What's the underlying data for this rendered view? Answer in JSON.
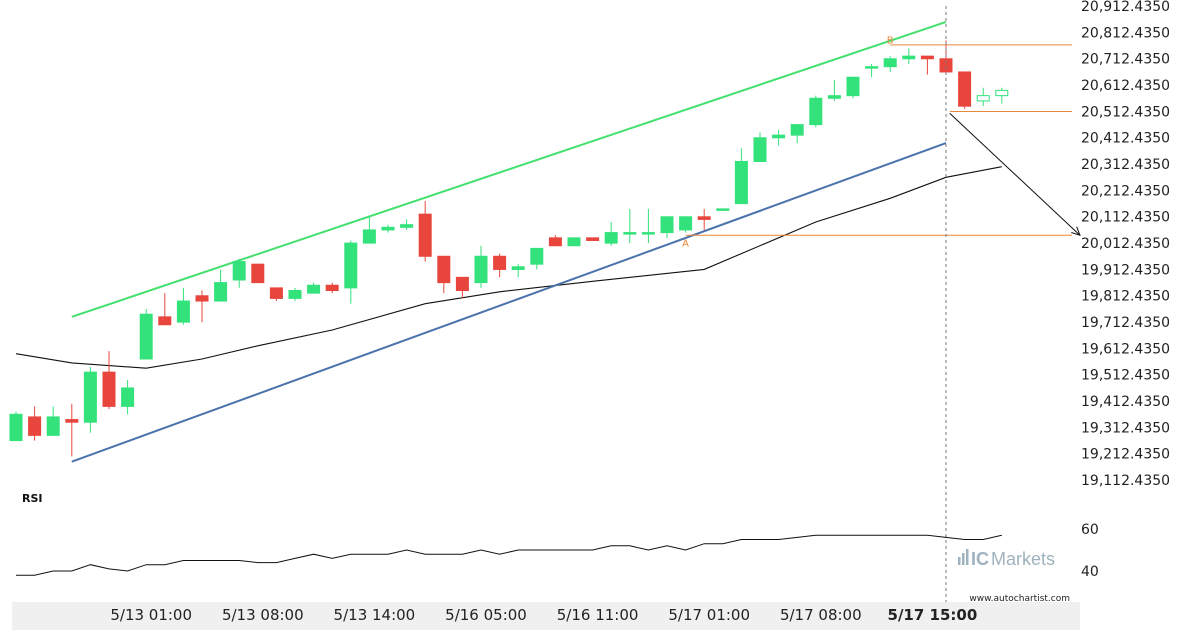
{
  "chart_data": {
    "type": "candlestick",
    "y_axis": {
      "ticks": [
        "20,912.4350",
        "20,812.4350",
        "20,712.4350",
        "20,612.4350",
        "20,512.4350",
        "20,412.4350",
        "20,312.4350",
        "20,212.4350",
        "20,112.4350",
        "20,012.4350",
        "19,912.4350",
        "19,812.4350",
        "19,712.4350",
        "19,612.4350",
        "19,512.4350",
        "19,412.4350",
        "19,312.4350",
        "19,212.4350",
        "19,112.4350"
      ],
      "range": [
        19062.435,
        20962.435
      ]
    },
    "x_axis": {
      "ticks": [
        "5/13 01:00",
        "5/13 08:00",
        "5/13 14:00",
        "5/16 05:00",
        "5/16 11:00",
        "5/17 01:00",
        "5/17 08:00",
        "5/17 15:00"
      ],
      "tick_index": [
        7,
        13,
        19,
        25,
        31,
        37,
        43,
        49
      ],
      "highlight": "5/17 15:00"
    },
    "candles": [
      {
        "o": 19262,
        "h": 19372,
        "l": 19262,
        "c": 19362
      },
      {
        "o": 19352,
        "h": 19392,
        "l": 19262,
        "c": 19282
      },
      {
        "o": 19282,
        "h": 19392,
        "l": 19282,
        "c": 19352
      },
      {
        "o": 19342,
        "h": 19402,
        "l": 19202,
        "c": 19332
      },
      {
        "o": 19332,
        "h": 19542,
        "l": 19292,
        "c": 19522
      },
      {
        "o": 19522,
        "h": 19602,
        "l": 19382,
        "c": 19392
      },
      {
        "o": 19392,
        "h": 19492,
        "l": 19362,
        "c": 19462
      },
      {
        "o": 19572,
        "h": 19762,
        "l": 19572,
        "c": 19742
      },
      {
        "o": 19732,
        "h": 19822,
        "l": 19712,
        "c": 19702
      },
      {
        "o": 19712,
        "h": 19842,
        "l": 19702,
        "c": 19792
      },
      {
        "o": 19812,
        "h": 19832,
        "l": 19712,
        "c": 19792
      },
      {
        "o": 19792,
        "h": 19912,
        "l": 19792,
        "c": 19862
      },
      {
        "o": 19872,
        "h": 19952,
        "l": 19842,
        "c": 19942
      },
      {
        "o": 19932,
        "h": 19932,
        "l": 19872,
        "c": 19862
      },
      {
        "o": 19842,
        "h": 19842,
        "l": 19792,
        "c": 19802
      },
      {
        "o": 19802,
        "h": 19842,
        "l": 19792,
        "c": 19832
      },
      {
        "o": 19822,
        "h": 19862,
        "l": 19822,
        "c": 19852
      },
      {
        "o": 19852,
        "h": 19862,
        "l": 19822,
        "c": 19832
      },
      {
        "o": 19842,
        "h": 20022,
        "l": 19782,
        "c": 20012
      },
      {
        "o": 20012,
        "h": 20112,
        "l": 20012,
        "c": 20062
      },
      {
        "o": 20062,
        "h": 20082,
        "l": 20052,
        "c": 20072
      },
      {
        "o": 20072,
        "h": 20102,
        "l": 20062,
        "c": 20082
      },
      {
        "o": 20122,
        "h": 20172,
        "l": 19942,
        "c": 19962
      },
      {
        "o": 19962,
        "h": 19962,
        "l": 19822,
        "c": 19862
      },
      {
        "o": 19882,
        "h": 19882,
        "l": 19802,
        "c": 19832
      },
      {
        "o": 19862,
        "h": 20002,
        "l": 19842,
        "c": 19962
      },
      {
        "o": 19962,
        "h": 19972,
        "l": 19882,
        "c": 19912
      },
      {
        "o": 19912,
        "h": 19932,
        "l": 19882,
        "c": 19922
      },
      {
        "o": 19932,
        "h": 19992,
        "l": 19912,
        "c": 19992
      },
      {
        "o": 20032,
        "h": 20042,
        "l": 20002,
        "c": 20002
      },
      {
        "o": 20002,
        "h": 20032,
        "l": 20002,
        "c": 20032
      },
      {
        "o": 20032,
        "h": 20032,
        "l": 20022,
        "c": 20022
      },
      {
        "o": 20012,
        "h": 20092,
        "l": 20002,
        "c": 20052
      },
      {
        "o": 20052,
        "h": 20142,
        "l": 20012,
        "c": 20052
      },
      {
        "o": 20052,
        "h": 20142,
        "l": 20012,
        "c": 20052
      },
      {
        "o": 20052,
        "h": 20102,
        "l": 20032,
        "c": 20112
      },
      {
        "o": 20062,
        "h": 20112,
        "l": 20052,
        "c": 20112
      },
      {
        "o": 20112,
        "h": 20142,
        "l": 20062,
        "c": 20102
      },
      {
        "o": 20142,
        "h": 20142,
        "l": 20142,
        "c": 20142
      },
      {
        "o": 20162,
        "h": 20372,
        "l": 20162,
        "c": 20322
      },
      {
        "o": 20322,
        "h": 20432,
        "l": 20322,
        "c": 20412
      },
      {
        "o": 20412,
        "h": 20442,
        "l": 20382,
        "c": 20422
      },
      {
        "o": 20422,
        "h": 20462,
        "l": 20392,
        "c": 20462
      },
      {
        "o": 20462,
        "h": 20572,
        "l": 20452,
        "c": 20562
      },
      {
        "o": 20562,
        "h": 20632,
        "l": 20552,
        "c": 20572
      },
      {
        "o": 20572,
        "h": 20642,
        "l": 20562,
        "c": 20642
      },
      {
        "o": 20682,
        "h": 20692,
        "l": 20642,
        "c": 20682
      },
      {
        "o": 20682,
        "h": 20722,
        "l": 20662,
        "c": 20712
      },
      {
        "o": 20712,
        "h": 20752,
        "l": 20692,
        "c": 20722
      },
      {
        "o": 20722,
        "h": 20722,
        "l": 20652,
        "c": 20712
      },
      {
        "o": 20712,
        "h": 20782,
        "l": 20662,
        "c": 20662
      },
      {
        "o": 20662,
        "h": 20662,
        "l": 20522,
        "c": 20532
      },
      {
        "o": 20552,
        "h": 20602,
        "l": 20532,
        "c": 20572
      },
      {
        "o": 20572,
        "h": 20602,
        "l": 20542,
        "c": 20592
      }
    ],
    "moving_average": {
      "i": [
        0,
        3,
        7,
        10,
        13,
        17,
        22,
        26,
        31,
        37,
        43,
        47,
        50,
        53
      ],
      "v": [
        19592,
        19557,
        19537,
        19572,
        19622,
        19682,
        19782,
        19827,
        19867,
        19912,
        20092,
        20182,
        20262,
        20302
      ]
    },
    "channel_upper": {
      "from": {
        "i": 3,
        "v": 19732
      },
      "to": {
        "i": 50,
        "v": 20852
      }
    },
    "channel_lower": {
      "from": {
        "i": 3,
        "v": 19182
      },
      "to": {
        "i": 50,
        "v": 20392
      }
    },
    "h_lines": [
      {
        "v": 20765,
        "from_i": 47
      },
      {
        "v": 20512,
        "from_i": 50.2
      },
      {
        "v": 20042,
        "from_i": 36
      }
    ],
    "point_labels": [
      {
        "text": "A",
        "i": 36,
        "v": 20015
      },
      {
        "text": "B",
        "i": 47,
        "v": 20785
      }
    ],
    "forecast_arrow": {
      "from": {
        "i": 50.2,
        "v": 20505
      },
      "to": {
        "i": 57.2,
        "v": 20042
      }
    },
    "vline_index": 50,
    "rsi": {
      "label": "RSI",
      "ticks": [
        "60",
        "40"
      ],
      "range": [
        30,
        70
      ],
      "i": [
        0,
        1,
        2,
        3,
        4,
        5,
        6,
        7,
        8,
        9,
        10,
        11,
        12,
        13,
        14,
        15,
        16,
        17,
        18,
        19,
        20,
        21,
        22,
        23,
        24,
        25,
        26,
        27,
        28,
        29,
        30,
        31,
        32,
        33,
        34,
        35,
        36,
        37,
        38,
        39,
        40,
        41,
        42,
        43,
        44,
        45,
        46,
        47,
        48,
        49,
        50,
        51,
        52,
        53
      ],
      "v": [
        38,
        38,
        40,
        40,
        43,
        41,
        40,
        43,
        43,
        45,
        45,
        45,
        45,
        44,
        44,
        46,
        48,
        46,
        48,
        48,
        48,
        50,
        48,
        48,
        48,
        50,
        48,
        50,
        50,
        50,
        50,
        50,
        52,
        52,
        50,
        52,
        50,
        53,
        53,
        55,
        55,
        55,
        56,
        57,
        57,
        57,
        57,
        57,
        57,
        57,
        56,
        55,
        55,
        57
      ]
    }
  },
  "branding": {
    "logo_prefix": "IC",
    "logo_suffix": "Markets",
    "website": "www.autochartist.com"
  },
  "colors": {
    "bull": "#33e27b",
    "bear": "#e8463d",
    "upper_channel": "#44e06e",
    "lower_channel": "#4a72ad",
    "level_lines": "#e7883c",
    "moving_average": "#111111",
    "logo": "#9fb2bd"
  }
}
